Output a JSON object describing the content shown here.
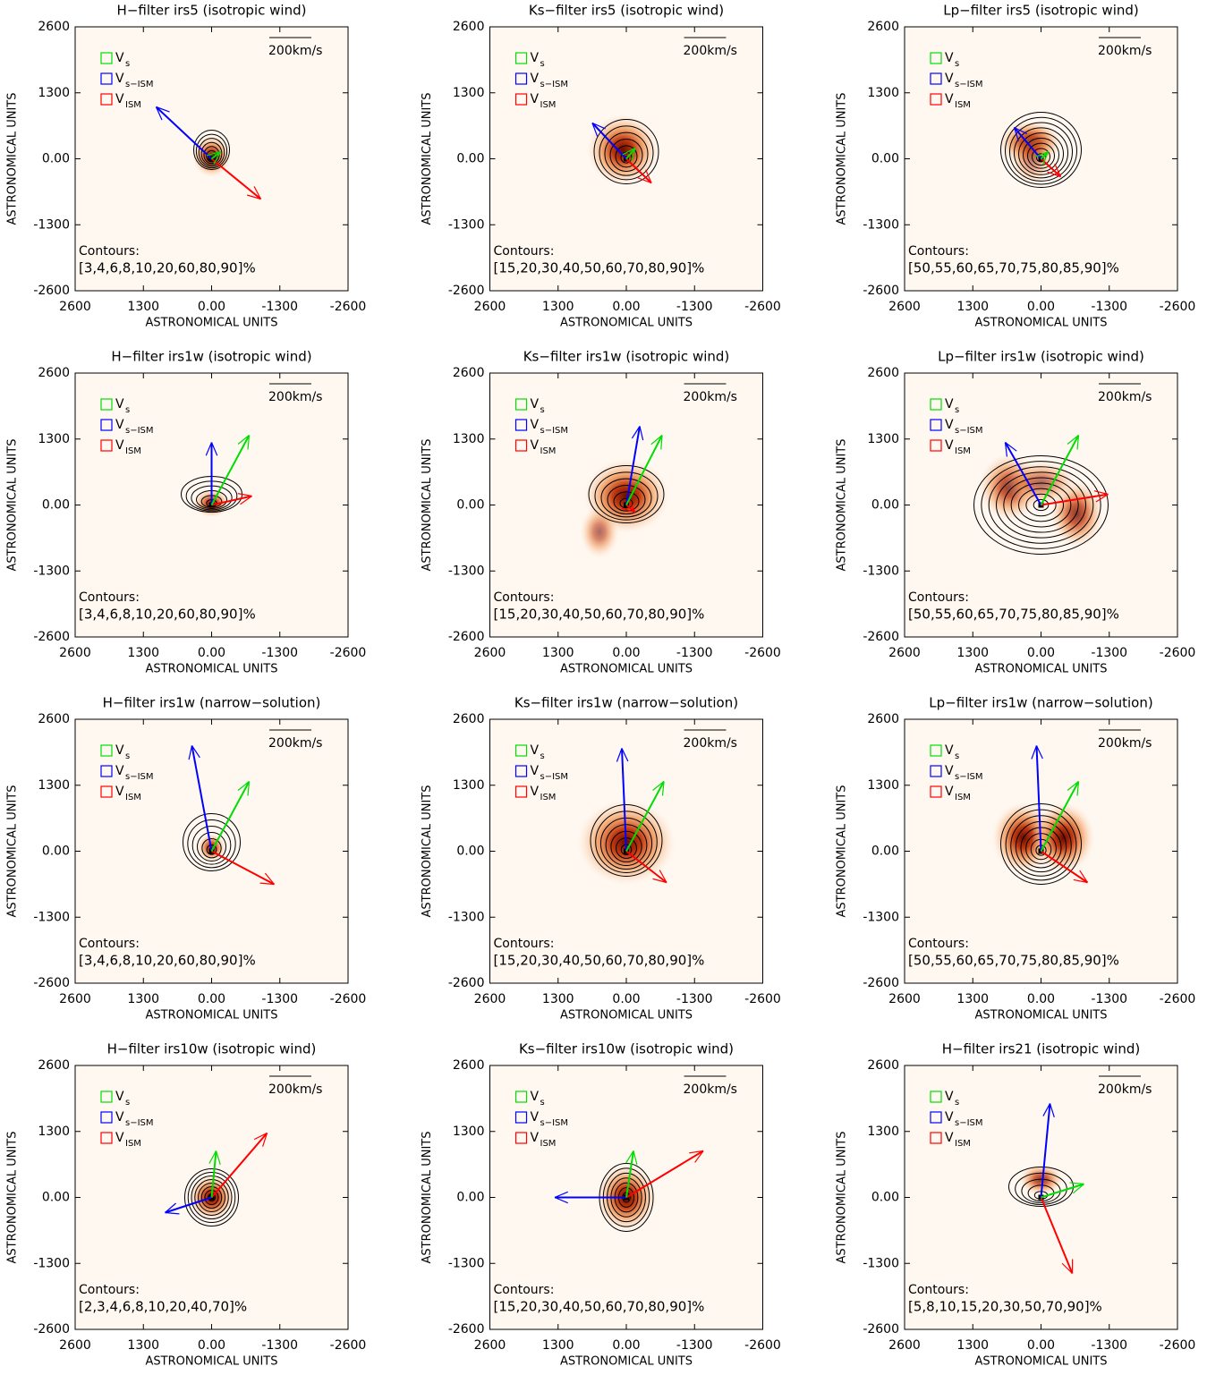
{
  "chart_data": [
    {
      "type": "image",
      "title": "H−filter irs5 (isotropic wind)",
      "xlabel": "ASTRONOMICAL UNITS",
      "ylabel": "ASTRONOMICAL UNITS",
      "xlim": [
        2600,
        -2600
      ],
      "ylim": [
        -2600,
        2600
      ],
      "xticks": [
        2600,
        1300,
        {
          "value": 0,
          "label": "0.00"
        },
        -1300,
        -2600
      ],
      "yticks": [
        2600,
        1300,
        {
          "value": 0,
          "label": "0.00"
        },
        -1300,
        -2600
      ],
      "legend": [
        {
          "label": "V",
          "sub": "s",
          "color": "#00dd00"
        },
        {
          "label": "V",
          "sub": "s−ISM",
          "color": "#0000ff"
        },
        {
          "label": "V",
          "sub": "ISM",
          "color": "#ff0000"
        }
      ],
      "scale_label": "200km/s",
      "contour_title": "Contours:",
      "contour_levels": "[3,4,6,8,10,20,60,80,90]%"
    },
    {
      "type": "image",
      "title": "Ks−filter irs5 (isotropic wind)",
      "xlabel": "ASTRONOMICAL UNITS",
      "ylabel": "ASTRONOMICAL UNITS",
      "xlim": [
        2600,
        -2600
      ],
      "ylim": [
        -2600,
        2600
      ],
      "xticks": [
        2600,
        1300,
        {
          "value": 0,
          "label": "0.00"
        },
        -1300,
        -2600
      ],
      "yticks": [
        2600,
        1300,
        {
          "value": 0,
          "label": "0.00"
        },
        -1300,
        -2600
      ],
      "legend": [
        {
          "label": "V",
          "sub": "s",
          "color": "#00dd00"
        },
        {
          "label": "V",
          "sub": "s−ISM",
          "color": "#0000ff"
        },
        {
          "label": "V",
          "sub": "ISM",
          "color": "#ff0000"
        }
      ],
      "scale_label": "200km/s",
      "contour_title": "Contours:",
      "contour_levels": "[15,20,30,40,50,60,70,80,90]%"
    },
    {
      "type": "image",
      "title": "Lp−filter irs5 (isotropic wind)",
      "xlabel": "ASTRONOMICAL UNITS",
      "ylabel": "ASTRONOMICAL UNITS",
      "xlim": [
        2600,
        -2600
      ],
      "ylim": [
        -2600,
        2600
      ],
      "xticks": [
        2600,
        1300,
        {
          "value": 0,
          "label": "0.00"
        },
        -1300,
        -2600
      ],
      "yticks": [
        2600,
        1300,
        {
          "value": 0,
          "label": "0.00"
        },
        -1300,
        -2600
      ],
      "legend": [
        {
          "label": "V",
          "sub": "s",
          "color": "#00dd00"
        },
        {
          "label": "V",
          "sub": "s−ISM",
          "color": "#0000ff"
        },
        {
          "label": "V",
          "sub": "ISM",
          "color": "#ff0000"
        }
      ],
      "scale_label": "200km/s",
      "contour_title": "Contours:",
      "contour_levels": "[50,55,60,65,70,75,80,85,90]%"
    },
    {
      "type": "image",
      "title": "H−filter irs1w (isotropic wind)",
      "xlabel": "ASTRONOMICAL UNITS",
      "ylabel": "ASTRONOMICAL UNITS",
      "xlim": [
        2600,
        -2600
      ],
      "ylim": [
        -2600,
        2600
      ],
      "xticks": [
        2600,
        1300,
        {
          "value": 0,
          "label": "0.00"
        },
        -1300,
        -2600
      ],
      "yticks": [
        2600,
        1300,
        {
          "value": 0,
          "label": "0.00"
        },
        -1300,
        -2600
      ],
      "legend": [
        {
          "label": "V",
          "sub": "s",
          "color": "#00dd00"
        },
        {
          "label": "V",
          "sub": "s−ISM",
          "color": "#0000ff"
        },
        {
          "label": "V",
          "sub": "ISM",
          "color": "#ff0000"
        }
      ],
      "scale_label": "200km/s",
      "contour_title": "Contours:",
      "contour_levels": "[3,4,6,8,10,20,60,80,90]%"
    },
    {
      "type": "image",
      "title": "Ks−filter irs1w (isotropic wind)",
      "xlabel": "ASTRONOMICAL UNITS",
      "ylabel": "ASTRONOMICAL UNITS",
      "xlim": [
        2600,
        -2600
      ],
      "ylim": [
        -2600,
        2600
      ],
      "xticks": [
        2600,
        1300,
        {
          "value": 0,
          "label": "0.00"
        },
        -1300,
        -2600
      ],
      "yticks": [
        2600,
        1300,
        {
          "value": 0,
          "label": "0.00"
        },
        -1300,
        -2600
      ],
      "legend": [
        {
          "label": "V",
          "sub": "s",
          "color": "#00dd00"
        },
        {
          "label": "V",
          "sub": "s−ISM",
          "color": "#0000ff"
        },
        {
          "label": "V",
          "sub": "ISM",
          "color": "#ff0000"
        }
      ],
      "scale_label": "200km/s",
      "contour_title": "Contours:",
      "contour_levels": "[15,20,30,40,50,60,70,80,90]%"
    },
    {
      "type": "image",
      "title": "Lp−filter irs1w (isotropic wind)",
      "xlabel": "ASTRONOMICAL UNITS",
      "ylabel": "ASTRONOMICAL UNITS",
      "xlim": [
        2600,
        -2600
      ],
      "ylim": [
        -2600,
        2600
      ],
      "xticks": [
        2600,
        1300,
        {
          "value": 0,
          "label": "0.00"
        },
        -1300,
        -2600
      ],
      "yticks": [
        2600,
        1300,
        {
          "value": 0,
          "label": "0.00"
        },
        -1300,
        -2600
      ],
      "legend": [
        {
          "label": "V",
          "sub": "s",
          "color": "#00dd00"
        },
        {
          "label": "V",
          "sub": "s−ISM",
          "color": "#0000ff"
        },
        {
          "label": "V",
          "sub": "ISM",
          "color": "#ff0000"
        }
      ],
      "scale_label": "200km/s",
      "contour_title": "Contours:",
      "contour_levels": "[50,55,60,65,70,75,80,85,90]%"
    },
    {
      "type": "image",
      "title": "H−filter irs1w (narrow−solution)",
      "xlabel": "ASTRONOMICAL UNITS",
      "ylabel": "ASTRONOMICAL UNITS",
      "xlim": [
        2600,
        -2600
      ],
      "ylim": [
        -2600,
        2600
      ],
      "xticks": [
        2600,
        1300,
        {
          "value": 0,
          "label": "0.00"
        },
        -1300,
        -2600
      ],
      "yticks": [
        2600,
        1300,
        {
          "value": 0,
          "label": "0.00"
        },
        -1300,
        -2600
      ],
      "legend": [
        {
          "label": "V",
          "sub": "s",
          "color": "#00dd00"
        },
        {
          "label": "V",
          "sub": "s−ISM",
          "color": "#0000ff"
        },
        {
          "label": "V",
          "sub": "ISM",
          "color": "#ff0000"
        }
      ],
      "scale_label": "200km/s",
      "contour_title": "Contours:",
      "contour_levels": "[3,4,6,8,10,20,60,80,90]%"
    },
    {
      "type": "image",
      "title": "Ks−filter irs1w (narrow−solution)",
      "xlabel": "ASTRONOMICAL UNITS",
      "ylabel": "ASTRONOMICAL UNITS",
      "xlim": [
        2600,
        -2600
      ],
      "ylim": [
        -2600,
        2600
      ],
      "xticks": [
        2600,
        1300,
        {
          "value": 0,
          "label": "0.00"
        },
        -1300,
        -2600
      ],
      "yticks": [
        2600,
        1300,
        {
          "value": 0,
          "label": "0.00"
        },
        -1300,
        -2600
      ],
      "legend": [
        {
          "label": "V",
          "sub": "s",
          "color": "#00dd00"
        },
        {
          "label": "V",
          "sub": "s−ISM",
          "color": "#0000ff"
        },
        {
          "label": "V",
          "sub": "ISM",
          "color": "#ff0000"
        }
      ],
      "scale_label": "200km/s",
      "contour_title": "Contours:",
      "contour_levels": "[15,20,30,40,50,60,70,80,90]%"
    },
    {
      "type": "image",
      "title": "Lp−filter irs1w (narrow−solution)",
      "xlabel": "ASTRONOMICAL UNITS",
      "ylabel": "ASTRONOMICAL UNITS",
      "xlim": [
        2600,
        -2600
      ],
      "ylim": [
        -2600,
        2600
      ],
      "xticks": [
        2600,
        1300,
        {
          "value": 0,
          "label": "0.00"
        },
        -1300,
        -2600
      ],
      "yticks": [
        2600,
        1300,
        {
          "value": 0,
          "label": "0.00"
        },
        -1300,
        -2600
      ],
      "legend": [
        {
          "label": "V",
          "sub": "s",
          "color": "#00dd00"
        },
        {
          "label": "V",
          "sub": "s−ISM",
          "color": "#0000ff"
        },
        {
          "label": "V",
          "sub": "ISM",
          "color": "#ff0000"
        }
      ],
      "scale_label": "200km/s",
      "contour_title": "Contours:",
      "contour_levels": "[50,55,60,65,70,75,80,85,90]%"
    },
    {
      "type": "image",
      "title": "H−filter irs10w (isotropic wind)",
      "xlabel": "ASTRONOMICAL UNITS",
      "ylabel": "ASTRONOMICAL UNITS",
      "xlim": [
        2600,
        -2600
      ],
      "ylim": [
        -2600,
        2600
      ],
      "xticks": [
        2600,
        1300,
        {
          "value": 0,
          "label": "0.00"
        },
        -1300,
        -2600
      ],
      "yticks": [
        2600,
        1300,
        {
          "value": 0,
          "label": "0.00"
        },
        -1300,
        -2600
      ],
      "legend": [
        {
          "label": "V",
          "sub": "s",
          "color": "#00dd00"
        },
        {
          "label": "V",
          "sub": "s−ISM",
          "color": "#0000ff"
        },
        {
          "label": "V",
          "sub": "ISM",
          "color": "#ff0000"
        }
      ],
      "scale_label": "200km/s",
      "contour_title": "Contours:",
      "contour_levels": "[2,3,4,6,8,10,20,40,70]%"
    },
    {
      "type": "image",
      "title": "Ks−filter irs10w (isotropic wind)",
      "xlabel": "ASTRONOMICAL UNITS",
      "ylabel": "ASTRONOMICAL UNITS",
      "xlim": [
        2600,
        -2600
      ],
      "ylim": [
        -2600,
        2600
      ],
      "xticks": [
        2600,
        1300,
        {
          "value": 0,
          "label": "0.00"
        },
        -1300,
        -2600
      ],
      "yticks": [
        2600,
        1300,
        {
          "value": 0,
          "label": "0.00"
        },
        -1300,
        -2600
      ],
      "legend": [
        {
          "label": "V",
          "sub": "s",
          "color": "#00dd00"
        },
        {
          "label": "V",
          "sub": "s−ISM",
          "color": "#0000ff"
        },
        {
          "label": "V",
          "sub": "ISM",
          "color": "#ff0000"
        }
      ],
      "scale_label": "200km/s",
      "contour_title": "Contours:",
      "contour_levels": "[15,20,30,40,50,60,70,80,90]%"
    },
    {
      "type": "image",
      "title": "H−filter irs21 (isotropic wind)",
      "xlabel": "ASTRONOMICAL UNITS",
      "ylabel": "ASTRONOMICAL UNITS",
      "xlim": [
        2600,
        -2600
      ],
      "ylim": [
        -2600,
        2600
      ],
      "xticks": [
        2600,
        1300,
        {
          "value": 0,
          "label": "0.00"
        },
        -1300,
        -2600
      ],
      "yticks": [
        2600,
        1300,
        {
          "value": 0,
          "label": "0.00"
        },
        -1300,
        -2600
      ],
      "legend": [
        {
          "label": "V",
          "sub": "s",
          "color": "#00dd00"
        },
        {
          "label": "V",
          "sub": "s−ISM",
          "color": "#0000ff"
        },
        {
          "label": "V",
          "sub": "ISM",
          "color": "#ff0000"
        }
      ],
      "scale_label": "200km/s",
      "contour_title": "Contours:",
      "contour_levels": "[5,8,10,15,20,30,50,70,90]%"
    }
  ]
}
